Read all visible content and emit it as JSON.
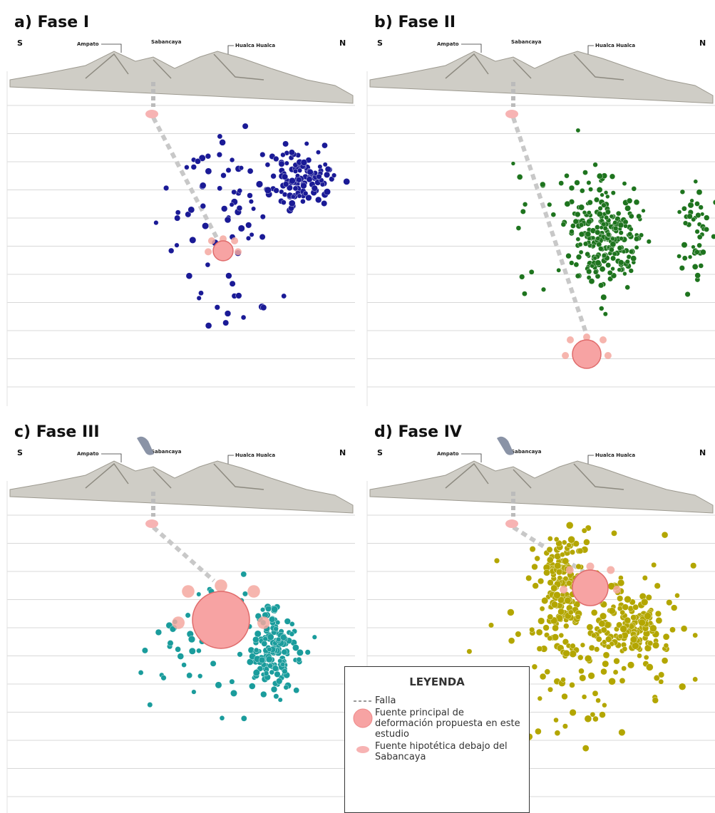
{
  "panels": [
    {
      "title": "a) Fase I",
      "south": "S",
      "north": "N",
      "peaks": [
        "Ampato",
        "Sabancaya",
        "Hualca Hualca"
      ]
    },
    {
      "title": "b) Fase II",
      "south": "S",
      "north": "N",
      "peaks": [
        "Ampato",
        "Sabancaya",
        "Hualca Hualca"
      ]
    },
    {
      "title": "c) Fase III",
      "south": "S",
      "north": "N",
      "peaks": [
        "Ampato",
        "Sabancaya",
        "Hualca Hualca"
      ]
    },
    {
      "title": "d) Fase IV",
      "south": "S",
      "north": "N",
      "peaks": [
        "Ampato",
        "Sabancaya",
        "Hualca Hualca"
      ]
    }
  ],
  "legend": {
    "title": "LEYENDA",
    "items": [
      "Falla",
      "Fuente principal de deformación propuesta en este estudio",
      "Fuente hipotética debajo del Sabancaya"
    ]
  }
}
